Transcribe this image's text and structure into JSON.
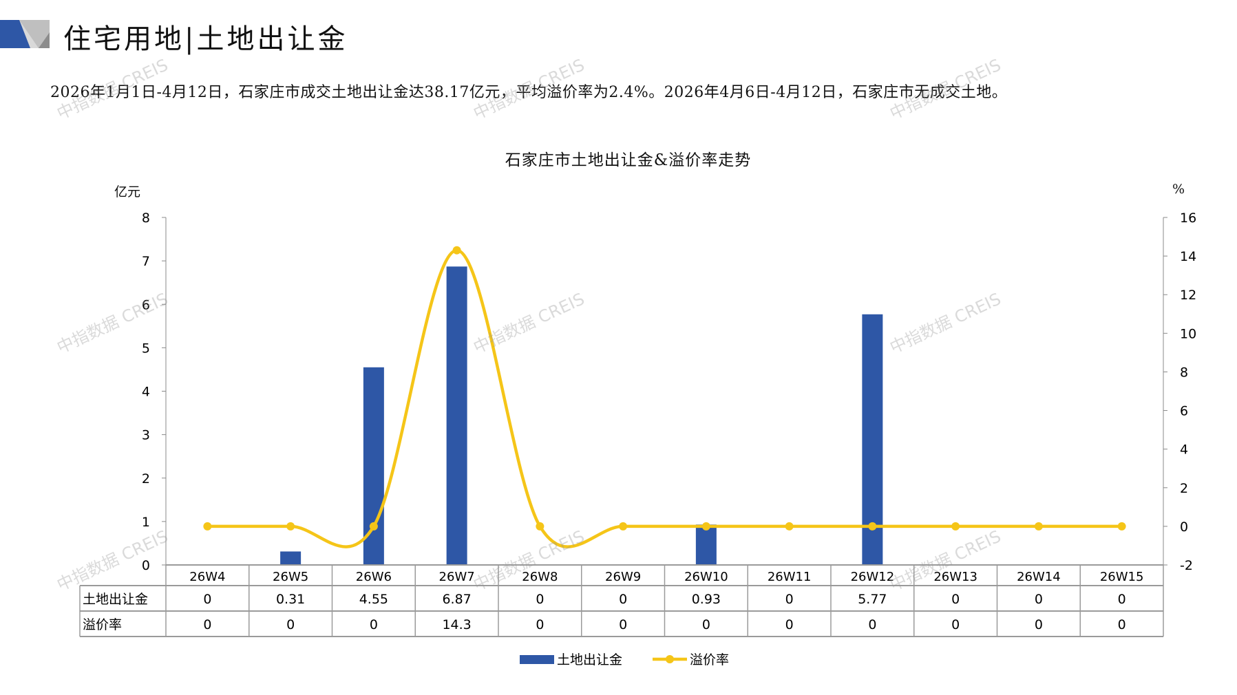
{
  "header": {
    "title": "住宅用地|土地出让金",
    "summary": "2026年1月1日-4月12日，石家庄市成交土地出让金达38.17亿元，平均溢价率为2.4%。2026年4月6日-4月12日，石家庄市无成交土地。"
  },
  "watermark": "中指数据 CREIS",
  "chart_data": {
    "type": "bar+line",
    "title": "石家庄市土地出让金&溢价率走势",
    "ylabel_left": "亿元",
    "ylabel_right": "%",
    "ylim_left": [
      0,
      8
    ],
    "yticks_left": [
      "0",
      "1",
      "2",
      "3",
      "4",
      "5",
      "6",
      "7",
      "8"
    ],
    "ylim_right": [
      -2,
      16
    ],
    "yticks_right": [
      "-2",
      "0",
      "2",
      "4",
      "6",
      "8",
      "10",
      "12",
      "14",
      "16"
    ],
    "categories": [
      "26W4",
      "26W5",
      "26W6",
      "26W7",
      "26W8",
      "26W9",
      "26W10",
      "26W11",
      "26W12",
      "26W13",
      "26W14",
      "26W15"
    ],
    "series": [
      {
        "name": "土地出让金",
        "type": "bar",
        "axis": "left",
        "color": "#2E57A6",
        "values": [
          0,
          0.31,
          4.55,
          6.87,
          0,
          0,
          0.93,
          0,
          5.77,
          0,
          0,
          0
        ],
        "labels": [
          "0",
          "0.31",
          "4.55",
          "6.87",
          "0",
          "0",
          "0.93",
          "0",
          "5.77",
          "0",
          "0",
          "0"
        ]
      },
      {
        "name": "溢价率",
        "type": "line",
        "axis": "right",
        "smooth": true,
        "color": "#F5C518",
        "values": [
          0,
          0,
          0,
          14.3,
          0,
          0,
          0,
          0,
          0,
          0,
          0,
          0
        ],
        "labels": [
          "0",
          "0",
          "0",
          "14.3",
          "0",
          "0",
          "0",
          "0",
          "0",
          "0",
          "0",
          "0"
        ]
      }
    ],
    "data_table": true,
    "legend": "bottom-center",
    "grid": false
  }
}
